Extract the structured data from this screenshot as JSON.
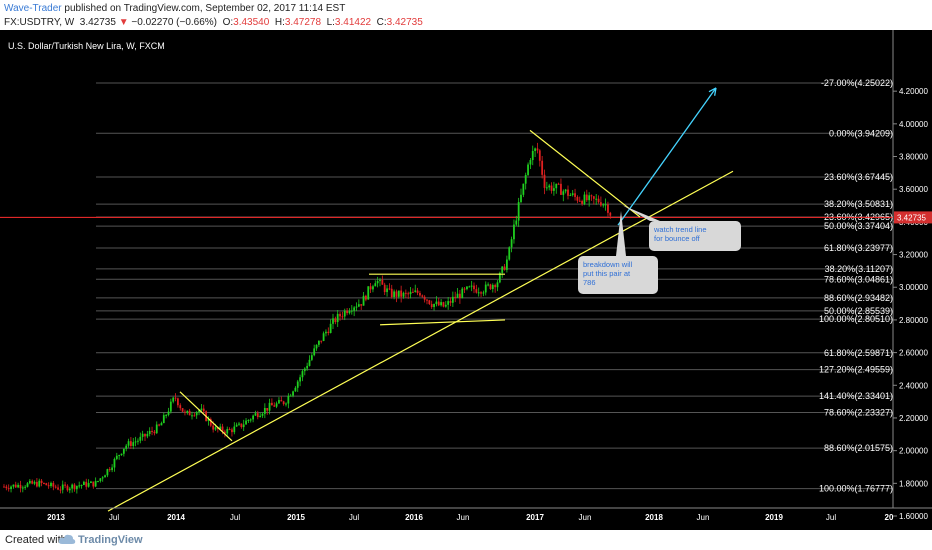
{
  "header": {
    "author": "Wave-Trader",
    "published": " published on TradingView.com, September 02, 2017 11:14 EST",
    "symbol": "FX:USDTRY, W",
    "last": "3.42735",
    "change": "−0.02270 (−0.66%)",
    "ohlc_label_o": "O:",
    "ohlc_o": "3.43540",
    "ohlc_label_h": "H:",
    "ohlc_h": "3.47278",
    "ohlc_label_l": "L:",
    "ohlc_l": "3.41422",
    "ohlc_label_c": "C:",
    "ohlc_c": "3.42735"
  },
  "colors": {
    "background": "#000000",
    "up_candle": "#1fcf1f",
    "down_candle": "#e02020",
    "trendline": "#ffff55",
    "arrow": "#45d4ff",
    "fib_line": "#555555",
    "price_line": "#ff2d2d",
    "last_price_tag": "#d32f2f"
  },
  "footer": {
    "created_with": "Created with",
    "brand": "TradingView"
  },
  "chart_data": {
    "type": "candlestick",
    "title": "U.S. Dollar/Turkish New Lira, W, FXCM",
    "ylim": [
      1.55,
      4.35
    ],
    "y_ticks": [
      "4.20000",
      "4.00000",
      "3.80000",
      "3.60000",
      "3.40000",
      "3.20000",
      "3.00000",
      "2.80000",
      "2.60000",
      "2.40000",
      "2.20000",
      "2.00000",
      "1.80000",
      "1.60000"
    ],
    "x_ticks": [
      "2013",
      "Jul",
      "2014",
      "Jul",
      "2015",
      "Jul",
      "2016",
      "Jun",
      "2017",
      "Jun",
      "2018",
      "Jun",
      "2019",
      "Jul",
      "20"
    ],
    "last_price": 3.42735,
    "last_price_label": "3.42735",
    "fib_levels": [
      {
        "label": "-27.00%(4.25022)",
        "price": 4.25022
      },
      {
        "label": "0.00%(3.94209)",
        "price": 3.94209
      },
      {
        "label": "23.60%(3.67445)",
        "price": 3.67445
      },
      {
        "label": "38.20%(3.50831)",
        "price": 3.50831
      },
      {
        "label": "23.60%(3.42965)",
        "price": 3.42965
      },
      {
        "label": "50.00%(3.37404)",
        "price": 3.37404
      },
      {
        "label": "61.80%(3.23977)",
        "price": 3.23977
      },
      {
        "label": "38.20%(3.11207)",
        "price": 3.11207
      },
      {
        "label": "78.60%(3.04861)",
        "price": 3.04861
      },
      {
        "label": "88.60%(2.93482)",
        "price": 2.93482
      },
      {
        "label": "50.00%(2.85539)",
        "price": 2.85539
      },
      {
        "label": "100.00%(2.80510)",
        "price": 2.8051
      },
      {
        "label": "61.80%(2.59871)",
        "price": 2.59871
      },
      {
        "label": "127.20%(2.49559)",
        "price": 2.49559
      },
      {
        "label": "141.40%(2.33401)",
        "price": 2.33401
      },
      {
        "label": "78.60%(2.23327)",
        "price": 2.23327
      },
      {
        "label": "88.60%(2.01575)",
        "price": 2.01575
      },
      {
        "label": "100.00%(1.76777)",
        "price": 1.76777
      }
    ],
    "annotations": [
      {
        "text": "watch trend line for bounce off"
      },
      {
        "text": "breakdown will put this pair at 786"
      }
    ]
  }
}
